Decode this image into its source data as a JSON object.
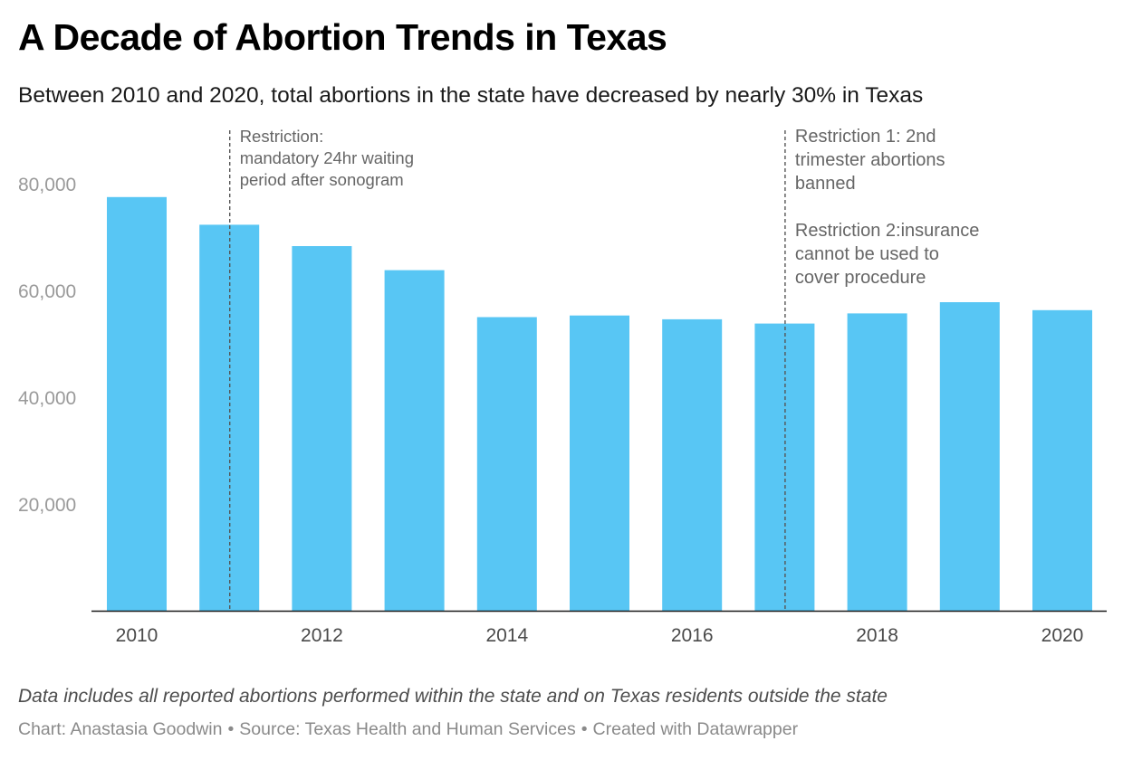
{
  "title": "A Decade of Abortion Trends in Texas",
  "subtitle": "Between 2010 and 2020, total abortions in the state have decreased by nearly 30% in Texas",
  "notes": "Data includes all reported abortions performed within the state and on Texas residents outside the state",
  "byline": {
    "chart": "Chart: Anastasia Goodwin",
    "source": "Source: Texas Health and Human Services",
    "created": "Created with Datawrapper",
    "separator": "•"
  },
  "colors": {
    "bar": "#58c6f4",
    "axis": "#1a1a1a",
    "tick_label": "#9a9a9a",
    "x_label": "#4a4a4a",
    "annotation": "#666666"
  },
  "chart_data": {
    "type": "bar",
    "categories": [
      "2010",
      "2011",
      "2012",
      "2013",
      "2014",
      "2015",
      "2016",
      "2017",
      "2018",
      "2019",
      "2020"
    ],
    "values": [
      77500,
      72300,
      68300,
      63800,
      55000,
      55300,
      54600,
      53800,
      55700,
      57800,
      56300
    ],
    "x_tick_labels": [
      "2010",
      "2012",
      "2014",
      "2016",
      "2018",
      "2020"
    ],
    "y_ticks": [
      20000,
      40000,
      60000,
      80000
    ],
    "y_tick_labels": [
      "20,000",
      "40,000",
      "60,000",
      "80,000"
    ],
    "ylim": [
      0,
      90000
    ],
    "grid": false,
    "xlabel": "",
    "ylabel": "",
    "annotations": [
      {
        "x": "2011",
        "lines": [
          "Restriction:",
          "mandatory 24hr waiting",
          "period after sonogram"
        ]
      },
      {
        "x": "2017",
        "lines": [
          "Restriction 1: 2nd",
          "trimester abortions",
          "banned",
          "",
          "Restriction 2:insurance",
          "cannot be used to",
          "cover procedure"
        ]
      }
    ]
  }
}
